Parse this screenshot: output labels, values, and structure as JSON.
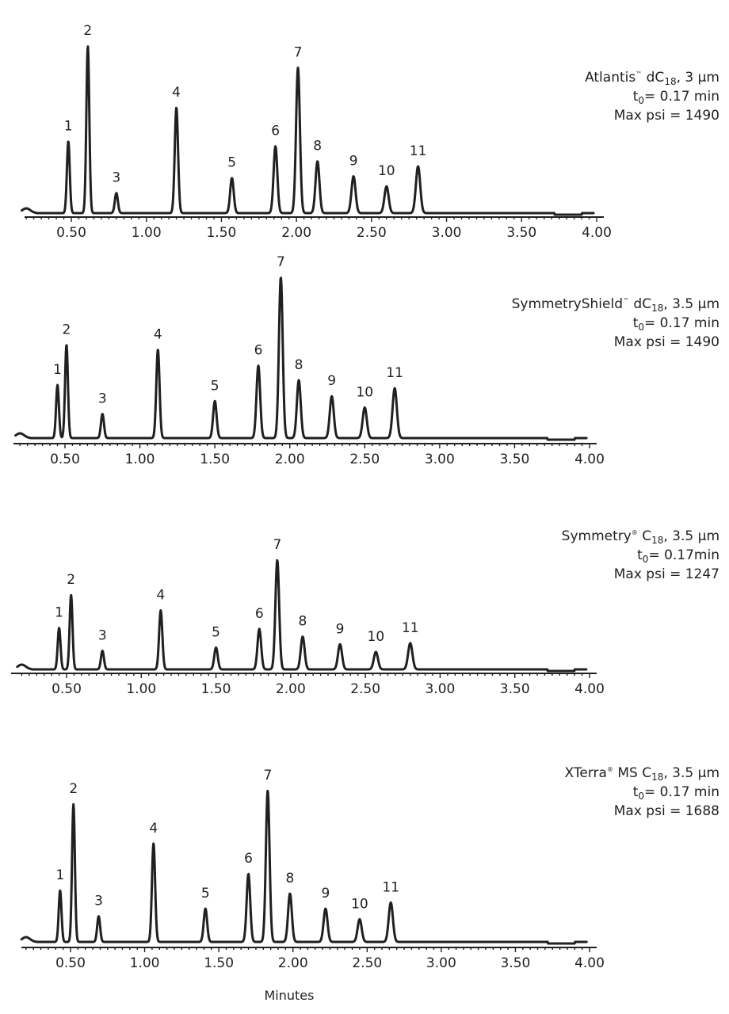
{
  "chart_data": {
    "type": "line",
    "xlabel": "Minutes",
    "xlim": [
      0.17,
      4.0
    ],
    "x_ticks": [
      "0.50",
      "1.00",
      "1.50",
      "2.00",
      "2.50",
      "3.00",
      "3.50",
      "4.00"
    ],
    "grid": false,
    "panels": [
      {
        "column": "Atlantis™ dC18, 3 µm",
        "column_parts": {
          "name": "Atlantis",
          "mark": "™",
          "phase": " dC",
          "phase_sub": "18",
          "rest": ", 3 µm"
        },
        "t0_label": "t",
        "t0_sub": "0",
        "t0_value": "= 0.17 min",
        "psi": "Max psi = 1490",
        "peaks": [
          {
            "label": "1",
            "rt": 0.48,
            "height": 0.43
          },
          {
            "label": "2",
            "rt": 0.61,
            "height": 1.0
          },
          {
            "label": "3",
            "rt": 0.8,
            "height": 0.12
          },
          {
            "label": "4",
            "rt": 1.2,
            "height": 0.63
          },
          {
            "label": "5",
            "rt": 1.57,
            "height": 0.21
          },
          {
            "label": "6",
            "rt": 1.86,
            "height": 0.4
          },
          {
            "label": "7",
            "rt": 2.01,
            "height": 0.87
          },
          {
            "label": "8",
            "rt": 2.14,
            "height": 0.31
          },
          {
            "label": "9",
            "rt": 2.38,
            "height": 0.22
          },
          {
            "label": "10",
            "rt": 2.6,
            "height": 0.16
          },
          {
            "label": "11",
            "rt": 2.81,
            "height": 0.28
          }
        ]
      },
      {
        "column": "SymmetryShield™ dC18, 3.5 µm",
        "column_parts": {
          "name": "SymmetryShield",
          "mark": "™",
          "phase": " dC",
          "phase_sub": "18",
          "rest": ", 3.5 µm"
        },
        "t0_label": "t",
        "t0_sub": "0",
        "t0_value": "= 0.17 min",
        "psi": "Max psi = 1490",
        "peaks": [
          {
            "label": "1",
            "rt": 0.45,
            "height": 0.33
          },
          {
            "label": "2",
            "rt": 0.51,
            "height": 0.58
          },
          {
            "label": "3",
            "rt": 0.75,
            "height": 0.15
          },
          {
            "label": "4",
            "rt": 1.12,
            "height": 0.55
          },
          {
            "label": "5",
            "rt": 1.5,
            "height": 0.23
          },
          {
            "label": "6",
            "rt": 1.79,
            "height": 0.45
          },
          {
            "label": "7",
            "rt": 1.94,
            "height": 1.0
          },
          {
            "label": "8",
            "rt": 2.06,
            "height": 0.36
          },
          {
            "label": "9",
            "rt": 2.28,
            "height": 0.26
          },
          {
            "label": "10",
            "rt": 2.5,
            "height": 0.19
          },
          {
            "label": "11",
            "rt": 2.7,
            "height": 0.31
          }
        ]
      },
      {
        "column": "Symmetry® C18, 3.5 µm",
        "column_parts": {
          "name": "Symmetry",
          "mark": "®",
          "phase": " C",
          "phase_sub": "18",
          "rest": ", 3.5 µm"
        },
        "t0_label": "t",
        "t0_sub": "0",
        "t0_value": "= 0.17min",
        "psi": "Max psi = 1247",
        "peaks": [
          {
            "label": "1",
            "rt": 0.45,
            "height": 0.38
          },
          {
            "label": "2",
            "rt": 0.53,
            "height": 0.68
          },
          {
            "label": "3",
            "rt": 0.74,
            "height": 0.17
          },
          {
            "label": "4",
            "rt": 1.13,
            "height": 0.54
          },
          {
            "label": "5",
            "rt": 1.5,
            "height": 0.2
          },
          {
            "label": "6",
            "rt": 1.79,
            "height": 0.37
          },
          {
            "label": "7",
            "rt": 1.91,
            "height": 1.0
          },
          {
            "label": "8",
            "rt": 2.08,
            "height": 0.3
          },
          {
            "label": "9",
            "rt": 2.33,
            "height": 0.23
          },
          {
            "label": "10",
            "rt": 2.57,
            "height": 0.16
          },
          {
            "label": "11",
            "rt": 2.8,
            "height": 0.24
          }
        ]
      },
      {
        "column": "XTerra® MS C18, 3.5 µm",
        "column_parts": {
          "name": "XTerra",
          "mark": "®",
          "phase": " MS C",
          "phase_sub": "18",
          "rest": ", 3.5 µm"
        },
        "t0_label": "t",
        "t0_sub": "0",
        "t0_value": "= 0.17 min",
        "psi": "Max psi = 1688",
        "peaks": [
          {
            "label": "1",
            "rt": 0.43,
            "height": 0.34
          },
          {
            "label": "2",
            "rt": 0.52,
            "height": 0.91
          },
          {
            "label": "3",
            "rt": 0.69,
            "height": 0.17
          },
          {
            "label": "4",
            "rt": 1.06,
            "height": 0.65
          },
          {
            "label": "5",
            "rt": 1.41,
            "height": 0.22
          },
          {
            "label": "6",
            "rt": 1.7,
            "height": 0.45
          },
          {
            "label": "7",
            "rt": 1.83,
            "height": 1.0
          },
          {
            "label": "8",
            "rt": 1.98,
            "height": 0.32
          },
          {
            "label": "9",
            "rt": 2.22,
            "height": 0.22
          },
          {
            "label": "10",
            "rt": 2.45,
            "height": 0.15
          },
          {
            "label": "11",
            "rt": 2.66,
            "height": 0.26
          }
        ]
      }
    ]
  }
}
